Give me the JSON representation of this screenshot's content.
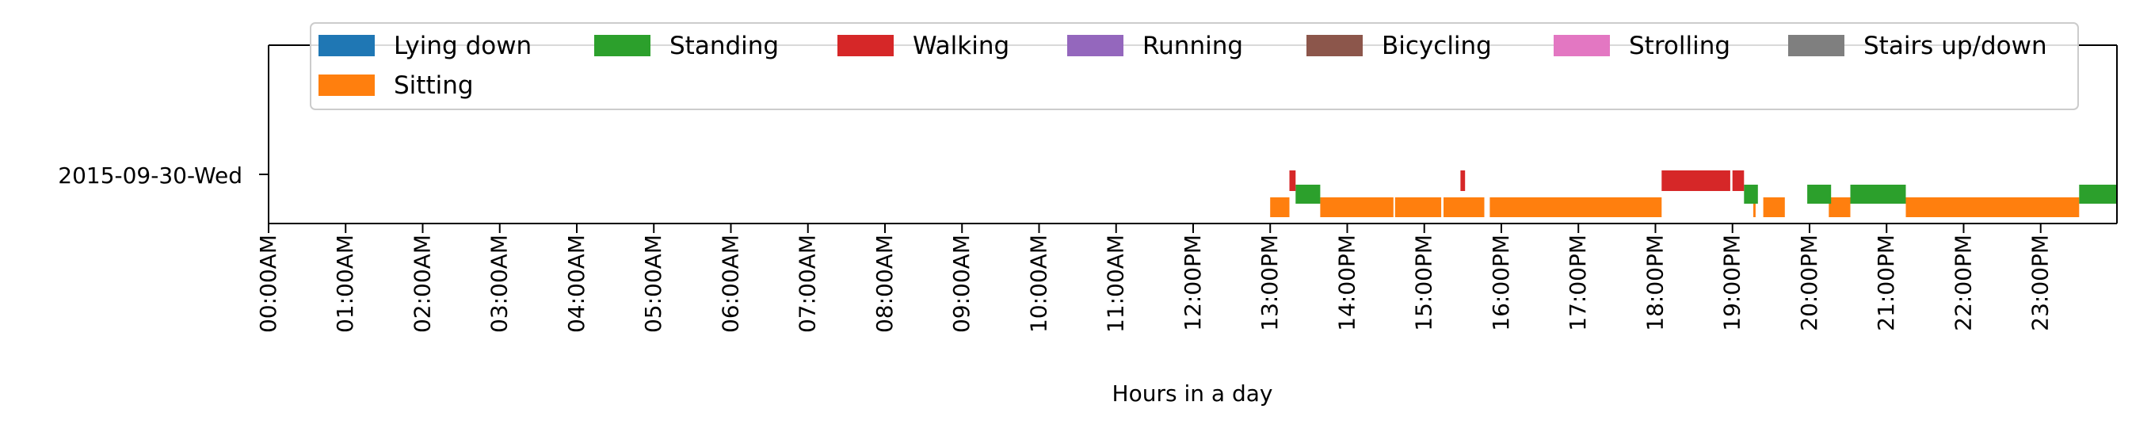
{
  "chart_data": {
    "type": "timeline",
    "title": "",
    "xlabel": "Hours in a day",
    "ylabel": "",
    "xlim_hours": [
      0,
      23.99
    ],
    "grid": false,
    "legend_position": "top",
    "day_label": "2015-09-30-Wed",
    "x_tick_labels": [
      "00:00AM",
      "01:00AM",
      "02:00AM",
      "03:00AM",
      "04:00AM",
      "05:00AM",
      "06:00AM",
      "07:00AM",
      "08:00AM",
      "09:00AM",
      "10:00AM",
      "11:00AM",
      "12:00PM",
      "13:00PM",
      "14:00PM",
      "15:00PM",
      "16:00PM",
      "17:00PM",
      "18:00PM",
      "19:00PM",
      "20:00PM",
      "21:00PM",
      "22:00PM",
      "23:00PM"
    ],
    "legend": [
      {
        "name": "Lying down",
        "color": "#1f77b4"
      },
      {
        "name": "Standing",
        "color": "#2ca02c"
      },
      {
        "name": "Walking",
        "color": "#d62728"
      },
      {
        "name": "Running",
        "color": "#9467bd"
      },
      {
        "name": "Bicycling",
        "color": "#8c564b"
      },
      {
        "name": "Strolling",
        "color": "#e377c2"
      },
      {
        "name": "Stairs up/down",
        "color": "#7f7f7f"
      },
      {
        "name": "Sitting",
        "color": "#ff7f0e"
      }
    ],
    "series": [
      {
        "name": "Sitting",
        "lane": "bottom",
        "intervals": [
          [
            13.0,
            13.25
          ],
          [
            13.65,
            14.6
          ],
          [
            14.62,
            15.22
          ],
          [
            15.25,
            15.78
          ],
          [
            15.85,
            18.08
          ],
          [
            19.27,
            19.3
          ],
          [
            19.4,
            19.68
          ],
          [
            20.25,
            20.53
          ],
          [
            21.25,
            23.5
          ]
        ]
      },
      {
        "name": "Standing",
        "lane": "middle",
        "intervals": [
          [
            13.33,
            13.65
          ],
          [
            19.15,
            19.33
          ],
          [
            19.97,
            20.28
          ],
          [
            20.53,
            21.25
          ],
          [
            23.5,
            23.99
          ]
        ]
      },
      {
        "name": "Walking",
        "lane": "top",
        "intervals": [
          [
            13.25,
            13.33
          ],
          [
            15.47,
            15.53
          ],
          [
            18.08,
            18.97
          ],
          [
            19.0,
            19.15
          ]
        ]
      }
    ]
  }
}
